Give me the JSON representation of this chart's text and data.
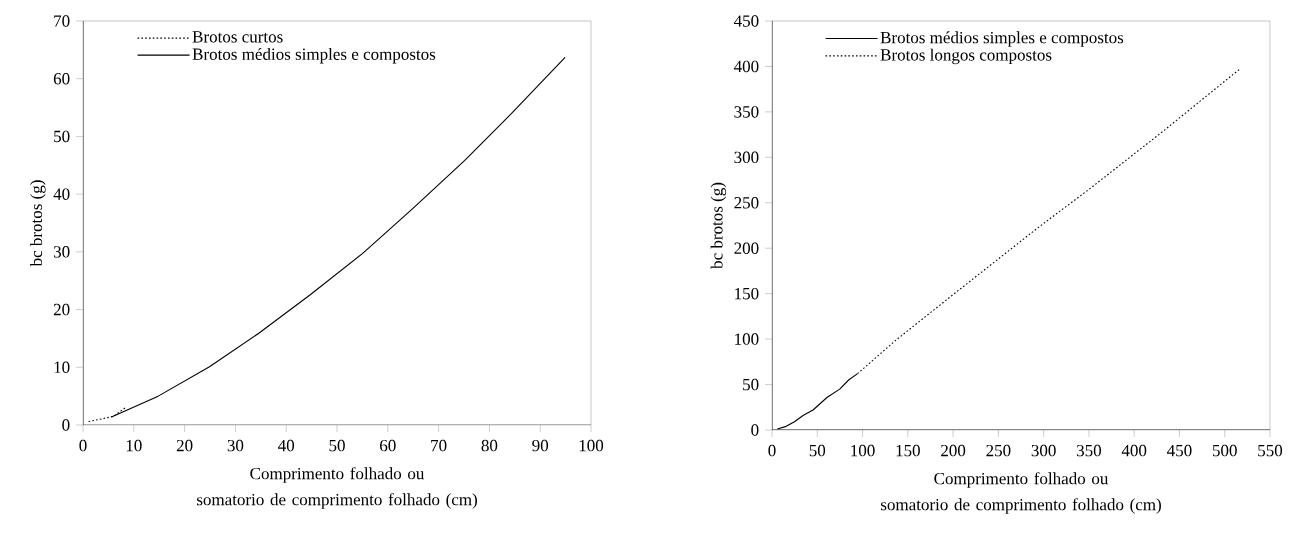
{
  "chart_data": [
    {
      "type": "line",
      "xlabel": "Comprimento folhado ou somatorio de comprimento folhado (cm)",
      "ylabel": "bc brotos (g)",
      "xlim": [
        0,
        100
      ],
      "ylim": [
        0,
        70
      ],
      "xticks": [
        0,
        10,
        20,
        30,
        40,
        50,
        60,
        70,
        80,
        90,
        100
      ],
      "yticks": [
        0,
        10,
        20,
        30,
        40,
        50,
        60,
        70
      ],
      "legend": "top left",
      "grid": false,
      "marker": "none",
      "series": [
        {
          "name": "Brotos curtos",
          "color": "#000000",
          "line_style": "dotted",
          "x": [
            1.1,
            3.9,
            6,
            8.5
          ],
          "values": [
            0.6,
            1.1,
            1.5,
            3.1
          ]
        },
        {
          "name": "Brotos médios simples e compostos",
          "color": "#000000",
          "line_style": "solid",
          "x": [
            5.6,
            14.8,
            24.9,
            34.6,
            44.8,
            55,
            64.9,
            75.1,
            84.6,
            94.9
          ],
          "values": [
            1.4,
            5,
            10.1,
            15.9,
            22.6,
            29.7,
            37.5,
            45.8,
            54.2,
            63.7
          ]
        }
      ]
    },
    {
      "type": "line",
      "xlabel": "Comprimento folhado ou somatorio de comprimento folhado (cm)",
      "ylabel": "bc brotos (g)",
      "xlim": [
        0,
        550
      ],
      "ylim": [
        0,
        450
      ],
      "xticks": [
        0,
        50,
        100,
        150,
        200,
        250,
        300,
        350,
        400,
        450,
        500,
        550
      ],
      "yticks": [
        0,
        50,
        100,
        150,
        200,
        250,
        300,
        350,
        400,
        450
      ],
      "legend": "top left",
      "grid": false,
      "marker": "none",
      "series": [
        {
          "name": "Brotos médios simples e compostos",
          "color": "#000000",
          "line_style": "solid",
          "x": [
            5.9,
            15.7,
            24.8,
            34.3,
            45.3,
            61,
            74.8,
            84.6,
            94.5
          ],
          "values": [
            1,
            4,
            9,
            16,
            22,
            36,
            45,
            55,
            62
          ]
        },
        {
          "name": "Brotos longos compostos",
          "color": "#000000",
          "line_style": "dotted",
          "x": [
            94.5,
            135.8,
            198.8,
            293,
            350.4,
            431,
            517.7
          ],
          "values": [
            62,
            98,
            148,
            222,
            265,
            328,
            398
          ]
        }
      ]
    }
  ]
}
